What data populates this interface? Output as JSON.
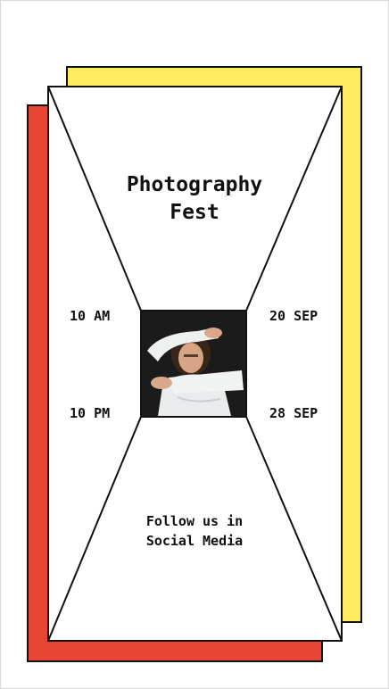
{
  "poster": {
    "title_line1": "Photography",
    "title_line2": "Fest",
    "time_start": "10 AM",
    "time_end": "10 PM",
    "date_start": "20 SEP",
    "date_end": "28 SEP",
    "footer_line1": "Follow us in",
    "footer_line2": "Social Media"
  },
  "colors": {
    "yellow": "#fdec5f",
    "red": "#e84436",
    "outline": "#111111",
    "background": "#ffffff"
  },
  "photo": {
    "icon": "portrait-photo"
  }
}
